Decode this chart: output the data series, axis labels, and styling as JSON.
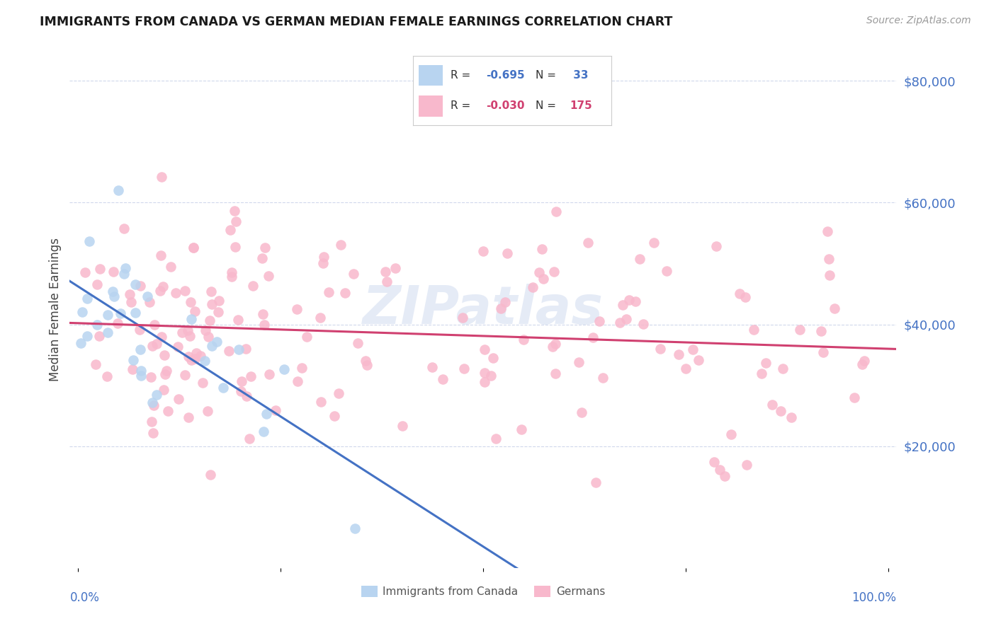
{
  "title": "IMMIGRANTS FROM CANADA VS GERMAN MEDIAN FEMALE EARNINGS CORRELATION CHART",
  "source": "Source: ZipAtlas.com",
  "ylabel": "Median Female Earnings",
  "y_tick_labels": [
    "$80,000",
    "$60,000",
    "$40,000",
    "$20,000"
  ],
  "y_tick_values": [
    80000,
    60000,
    40000,
    20000
  ],
  "ylim_max": 85000,
  "color_canada": "#b8d4f0",
  "color_canada_line": "#4472c4",
  "color_german": "#f8b8cc",
  "color_german_line": "#d04070",
  "color_axis_labels": "#4472c4",
  "watermark": "ZIPatlas",
  "background_color": "#ffffff",
  "grid_color": "#d0d8ec",
  "canada_N": 33,
  "german_N": 175
}
